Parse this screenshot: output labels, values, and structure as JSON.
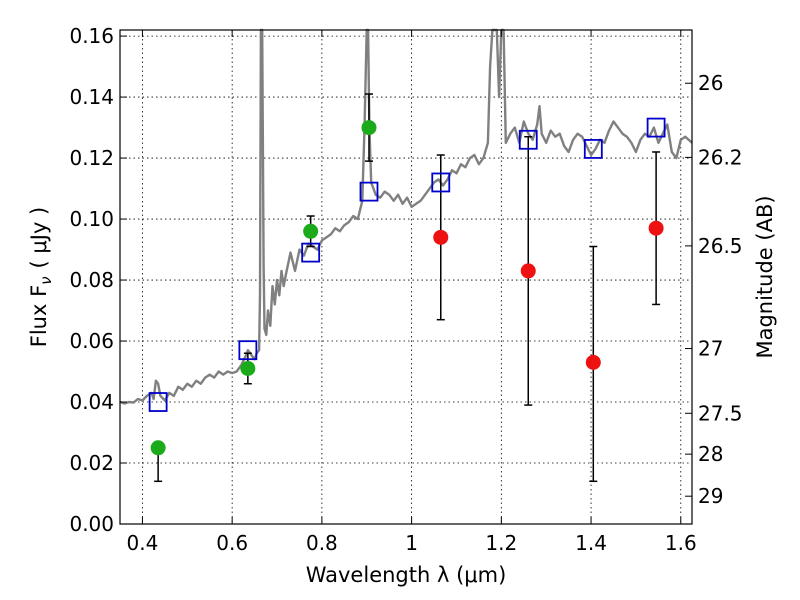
{
  "chart_data": {
    "type": "scatter",
    "xlabel": "Wavelength  λ (μm)",
    "ylabel": "Flux  F",
    "ylabel_sub": "ν",
    "ylabel_unit": "( μJy )",
    "y2label": "Magnitude (AB)",
    "xlim": [
      0.35,
      1.625
    ],
    "ylim": [
      0.0,
      0.162
    ],
    "grid": true,
    "x_ticks": [
      {
        "v": 0.4,
        "label": "0.4"
      },
      {
        "v": 0.6,
        "label": "0.6"
      },
      {
        "v": 0.8,
        "label": "0.8"
      },
      {
        "v": 1.0,
        "label": "1"
      },
      {
        "v": 1.2,
        "label": "1.2"
      },
      {
        "v": 1.4,
        "label": "1.4"
      },
      {
        "v": 1.6,
        "label": "1.6"
      }
    ],
    "y_ticks": [
      {
        "v": 0.0,
        "label": "0.00"
      },
      {
        "v": 0.02,
        "label": "0.02"
      },
      {
        "v": 0.04,
        "label": "0.04"
      },
      {
        "v": 0.06,
        "label": "0.06"
      },
      {
        "v": 0.08,
        "label": "0.08"
      },
      {
        "v": 0.1,
        "label": "0.10"
      },
      {
        "v": 0.12,
        "label": "0.12"
      },
      {
        "v": 0.14,
        "label": "0.14"
      },
      {
        "v": 0.16,
        "label": "0.16"
      }
    ],
    "mag_ticks": [
      {
        "mag": 26,
        "label": "26"
      },
      {
        "mag": 26.2,
        "label": "26.2"
      },
      {
        "mag": 26.5,
        "label": "26.5"
      },
      {
        "mag": 27,
        "label": "27"
      },
      {
        "mag": 27.5,
        "label": "27.5"
      },
      {
        "mag": 28,
        "label": "28"
      },
      {
        "mag": 29,
        "label": "29"
      }
    ],
    "model_spectrum": {
      "color": "#808080",
      "points": [
        [
          0.35,
          0.04
        ],
        [
          0.36,
          0.0395
        ],
        [
          0.37,
          0.04
        ],
        [
          0.38,
          0.0398
        ],
        [
          0.39,
          0.041
        ],
        [
          0.4,
          0.0405
        ],
        [
          0.41,
          0.042
        ],
        [
          0.42,
          0.043
        ],
        [
          0.425,
          0.041
        ],
        [
          0.43,
          0.047
        ],
        [
          0.435,
          0.046
        ],
        [
          0.44,
          0.042
        ],
        [
          0.45,
          0.0405
        ],
        [
          0.46,
          0.043
        ],
        [
          0.47,
          0.042
        ],
        [
          0.48,
          0.045
        ],
        [
          0.49,
          0.044
        ],
        [
          0.5,
          0.046
        ],
        [
          0.51,
          0.045
        ],
        [
          0.52,
          0.047
        ],
        [
          0.53,
          0.046
        ],
        [
          0.54,
          0.048
        ],
        [
          0.55,
          0.049
        ],
        [
          0.56,
          0.048
        ],
        [
          0.57,
          0.05
        ],
        [
          0.58,
          0.049
        ],
        [
          0.59,
          0.05
        ],
        [
          0.6,
          0.0495
        ],
        [
          0.61,
          0.05
        ],
        [
          0.62,
          0.052
        ],
        [
          0.63,
          0.055
        ],
        [
          0.635,
          0.057
        ],
        [
          0.64,
          0.056
        ],
        [
          0.645,
          0.055
        ],
        [
          0.65,
          0.054
        ],
        [
          0.655,
          0.056
        ],
        [
          0.66,
          0.057
        ],
        [
          0.662,
          0.075
        ],
        [
          0.664,
          0.165
        ],
        [
          0.667,
          0.165
        ],
        [
          0.67,
          0.085
        ],
        [
          0.672,
          0.064
        ],
        [
          0.676,
          0.062
        ],
        [
          0.68,
          0.07
        ],
        [
          0.685,
          0.065
        ],
        [
          0.69,
          0.078
        ],
        [
          0.695,
          0.072
        ],
        [
          0.7,
          0.08
        ],
        [
          0.705,
          0.075
        ],
        [
          0.71,
          0.083
        ],
        [
          0.715,
          0.078
        ],
        [
          0.72,
          0.082
        ],
        [
          0.73,
          0.089
        ],
        [
          0.74,
          0.083
        ],
        [
          0.75,
          0.09
        ],
        [
          0.76,
          0.088
        ],
        [
          0.77,
          0.092
        ],
        [
          0.78,
          0.091
        ],
        [
          0.79,
          0.09
        ],
        [
          0.8,
          0.093
        ],
        [
          0.81,
          0.094
        ],
        [
          0.82,
          0.095
        ],
        [
          0.83,
          0.097
        ],
        [
          0.84,
          0.096
        ],
        [
          0.85,
          0.098
        ],
        [
          0.86,
          0.099
        ],
        [
          0.87,
          0.101
        ],
        [
          0.88,
          0.1
        ],
        [
          0.89,
          0.106
        ],
        [
          0.895,
          0.13
        ],
        [
          0.9,
          0.165
        ],
        [
          0.903,
          0.165
        ],
        [
          0.906,
          0.13
        ],
        [
          0.91,
          0.112
        ],
        [
          0.92,
          0.108
        ],
        [
          0.93,
          0.107
        ],
        [
          0.94,
          0.109
        ],
        [
          0.95,
          0.108
        ],
        [
          0.96,
          0.106
        ],
        [
          0.97,
          0.108
        ],
        [
          0.98,
          0.105
        ],
        [
          0.99,
          0.107
        ],
        [
          1.0,
          0.104
        ],
        [
          1.01,
          0.105
        ],
        [
          1.02,
          0.106
        ],
        [
          1.03,
          0.108
        ],
        [
          1.04,
          0.11
        ],
        [
          1.05,
          0.112
        ],
        [
          1.06,
          0.113
        ],
        [
          1.07,
          0.111
        ],
        [
          1.08,
          0.113
        ],
        [
          1.09,
          0.116
        ],
        [
          1.1,
          0.115
        ],
        [
          1.11,
          0.118
        ],
        [
          1.12,
          0.117
        ],
        [
          1.13,
          0.12
        ],
        [
          1.14,
          0.121
        ],
        [
          1.15,
          0.118
        ],
        [
          1.16,
          0.12
        ],
        [
          1.17,
          0.125
        ],
        [
          1.175,
          0.15
        ],
        [
          1.18,
          0.165
        ],
        [
          1.19,
          0.165
        ],
        [
          1.195,
          0.14
        ],
        [
          1.2,
          0.165
        ],
        [
          1.205,
          0.165
        ],
        [
          1.21,
          0.125
        ],
        [
          1.22,
          0.128
        ],
        [
          1.23,
          0.13
        ],
        [
          1.24,
          0.125
        ],
        [
          1.25,
          0.132
        ],
        [
          1.26,
          0.128
        ],
        [
          1.27,
          0.126
        ],
        [
          1.28,
          0.131
        ],
        [
          1.285,
          0.137
        ],
        [
          1.29,
          0.128
        ],
        [
          1.3,
          0.125
        ],
        [
          1.31,
          0.129
        ],
        [
          1.32,
          0.127
        ],
        [
          1.33,
          0.128
        ],
        [
          1.34,
          0.124
        ],
        [
          1.35,
          0.122
        ],
        [
          1.36,
          0.126
        ],
        [
          1.37,
          0.128
        ],
        [
          1.38,
          0.127
        ],
        [
          1.39,
          0.124
        ],
        [
          1.4,
          0.121
        ],
        [
          1.41,
          0.123
        ],
        [
          1.42,
          0.126
        ],
        [
          1.43,
          0.125
        ],
        [
          1.44,
          0.129
        ],
        [
          1.45,
          0.132
        ],
        [
          1.46,
          0.13
        ],
        [
          1.47,
          0.128
        ],
        [
          1.48,
          0.127
        ],
        [
          1.49,
          0.125
        ],
        [
          1.5,
          0.122
        ],
        [
          1.51,
          0.126
        ],
        [
          1.52,
          0.128
        ],
        [
          1.53,
          0.127
        ],
        [
          1.54,
          0.13
        ],
        [
          1.55,
          0.125
        ],
        [
          1.56,
          0.128
        ],
        [
          1.57,
          0.131
        ],
        [
          1.58,
          0.122
        ],
        [
          1.59,
          0.12
        ],
        [
          1.6,
          0.126
        ],
        [
          1.61,
          0.127
        ],
        [
          1.625,
          0.125
        ]
      ]
    },
    "model_band_fluxes": {
      "color": "#0000cc",
      "x": [
        0.435,
        0.635,
        0.775,
        0.905,
        1.065,
        1.26,
        1.405,
        1.545
      ],
      "y": [
        0.04,
        0.057,
        0.089,
        0.109,
        0.112,
        0.126,
        0.123,
        0.13
      ]
    },
    "detections": {
      "color": "#1aaa1a",
      "x": [
        0.435,
        0.635,
        0.775,
        0.905
      ],
      "y": [
        0.025,
        0.051,
        0.096,
        0.13
      ],
      "err_low": [
        0.014,
        0.046,
        0.091,
        0.119
      ],
      "err_high": [
        0.025,
        0.056,
        0.101,
        0.141
      ]
    },
    "upper_constraints": {
      "color": "#ee1111",
      "x": [
        1.065,
        1.26,
        1.405,
        1.545
      ],
      "y": [
        0.094,
        0.083,
        0.053,
        0.097
      ],
      "err_low": [
        0.067,
        0.039,
        0.014,
        0.072
      ],
      "err_high": [
        0.121,
        0.127,
        0.091,
        0.122
      ]
    }
  }
}
